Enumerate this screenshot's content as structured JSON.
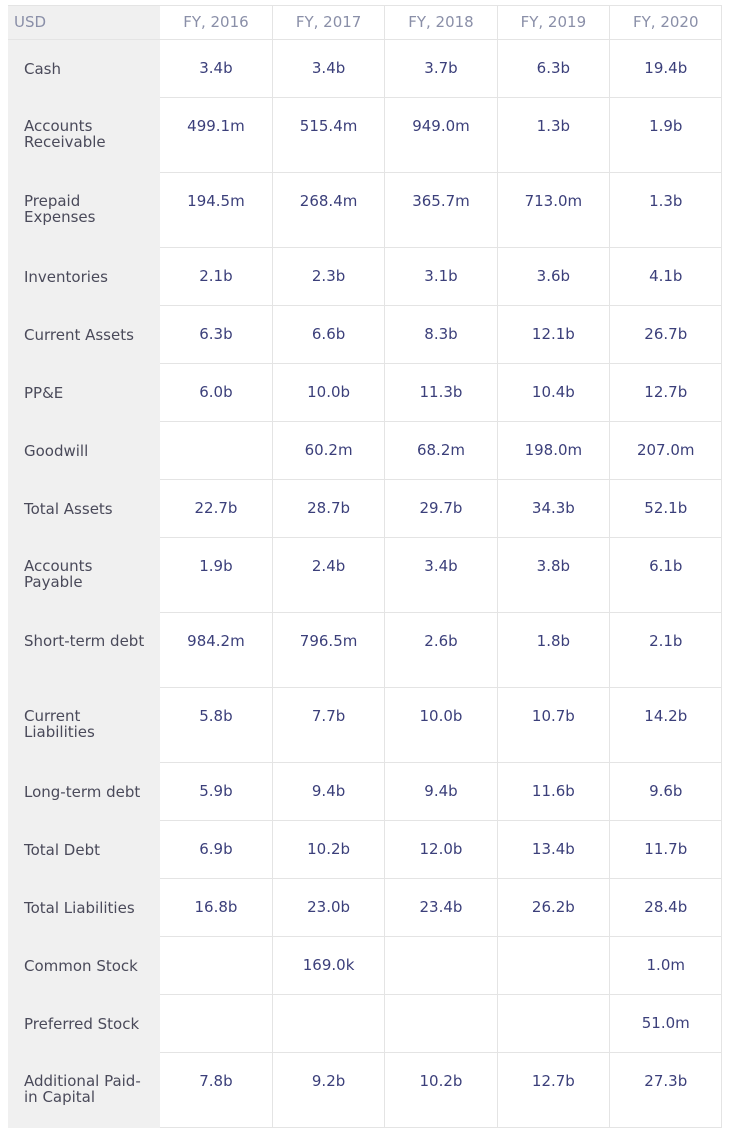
{
  "header": {
    "currency": "USD",
    "years": [
      "FY, 2016",
      "FY, 2017",
      "FY, 2018",
      "FY, 2019",
      "FY, 2020"
    ]
  },
  "rows": [
    {
      "label": "Cash",
      "values": [
        "3.4b",
        "3.4b",
        "3.7b",
        "6.3b",
        "19.4b"
      ]
    },
    {
      "label": "Accounts Receivable",
      "values": [
        "499.1m",
        "515.4m",
        "949.0m",
        "1.3b",
        "1.9b"
      ]
    },
    {
      "label": "Prepaid Expenses",
      "values": [
        "194.5m",
        "268.4m",
        "365.7m",
        "713.0m",
        "1.3b"
      ]
    },
    {
      "label": "Inventories",
      "values": [
        "2.1b",
        "2.3b",
        "3.1b",
        "3.6b",
        "4.1b"
      ]
    },
    {
      "label": "Current Assets",
      "values": [
        "6.3b",
        "6.6b",
        "8.3b",
        "12.1b",
        "26.7b"
      ]
    },
    {
      "label": "PP&E",
      "values": [
        "6.0b",
        "10.0b",
        "11.3b",
        "10.4b",
        "12.7b"
      ]
    },
    {
      "label": "Goodwill",
      "values": [
        "",
        "60.2m",
        "68.2m",
        "198.0m",
        "207.0m"
      ]
    },
    {
      "label": "Total Assets",
      "values": [
        "22.7b",
        "28.7b",
        "29.7b",
        "34.3b",
        "52.1b"
      ]
    },
    {
      "label": "Accounts Payable",
      "values": [
        "1.9b",
        "2.4b",
        "3.4b",
        "3.8b",
        "6.1b"
      ]
    },
    {
      "label": "Short-term debt",
      "values": [
        "984.2m",
        "796.5m",
        "2.6b",
        "1.8b",
        "2.1b"
      ]
    },
    {
      "label": "Current Liabilities",
      "values": [
        "5.8b",
        "7.7b",
        "10.0b",
        "10.7b",
        "14.2b"
      ]
    },
    {
      "label": "Long-term debt",
      "values": [
        "5.9b",
        "9.4b",
        "9.4b",
        "11.6b",
        "9.6b"
      ]
    },
    {
      "label": "Total Debt",
      "values": [
        "6.9b",
        "10.2b",
        "12.0b",
        "13.4b",
        "11.7b"
      ]
    },
    {
      "label": "Total Liabilities",
      "values": [
        "16.8b",
        "23.0b",
        "23.4b",
        "26.2b",
        "28.4b"
      ]
    },
    {
      "label": "Common Stock",
      "values": [
        "",
        "169.0k",
        "",
        "",
        "1.0m"
      ]
    },
    {
      "label": "Preferred Stock",
      "values": [
        "",
        "",
        "",
        "",
        "51.0m"
      ]
    },
    {
      "label": "Additional Paid-in Capital",
      "values": [
        "7.8b",
        "9.2b",
        "10.2b",
        "12.7b",
        "27.3b"
      ]
    }
  ]
}
